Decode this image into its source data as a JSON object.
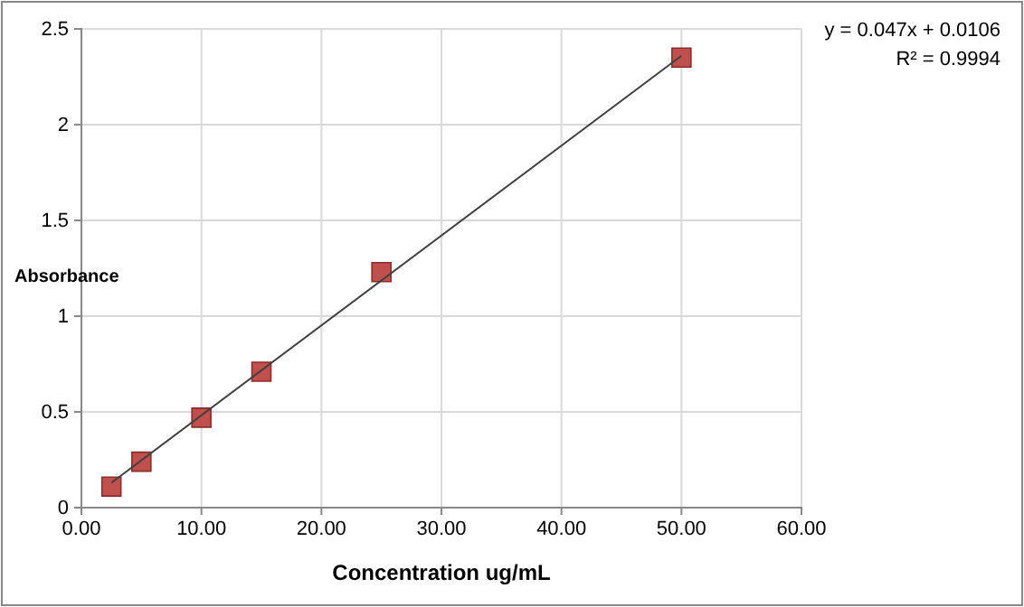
{
  "chart_data": {
    "type": "scatter",
    "xlabel": "Concentration ug/mL",
    "ylabel": "Absorbance",
    "annotations": [
      "y = 0.047x + 0.0106",
      "R² = 0.9994"
    ],
    "xlim": [
      0,
      60
    ],
    "ylim": [
      0,
      2.5
    ],
    "xticks": [
      {
        "value": 0,
        "label": "0.00"
      },
      {
        "value": 10,
        "label": "10.00"
      },
      {
        "value": 20,
        "label": "20.00"
      },
      {
        "value": 30,
        "label": "30.00"
      },
      {
        "value": 40,
        "label": "40.00"
      },
      {
        "value": 50,
        "label": "50.00"
      },
      {
        "value": 60,
        "label": "60.00"
      }
    ],
    "yticks": [
      0,
      0.5,
      1,
      1.5,
      2,
      2.5
    ],
    "grid": true,
    "series": [
      {
        "color": "#c0504d",
        "marker": "square",
        "x": [
          2.5,
          5,
          10,
          15,
          25,
          50
        ],
        "values": [
          0.11,
          0.24,
          0.47,
          0.71,
          1.23,
          2.35
        ]
      },
      {
        "type": "line",
        "marker": "none",
        "color": "#404040",
        "x": [
          2.5,
          50
        ],
        "values": [
          0.13,
          2.36
        ]
      }
    ]
  }
}
